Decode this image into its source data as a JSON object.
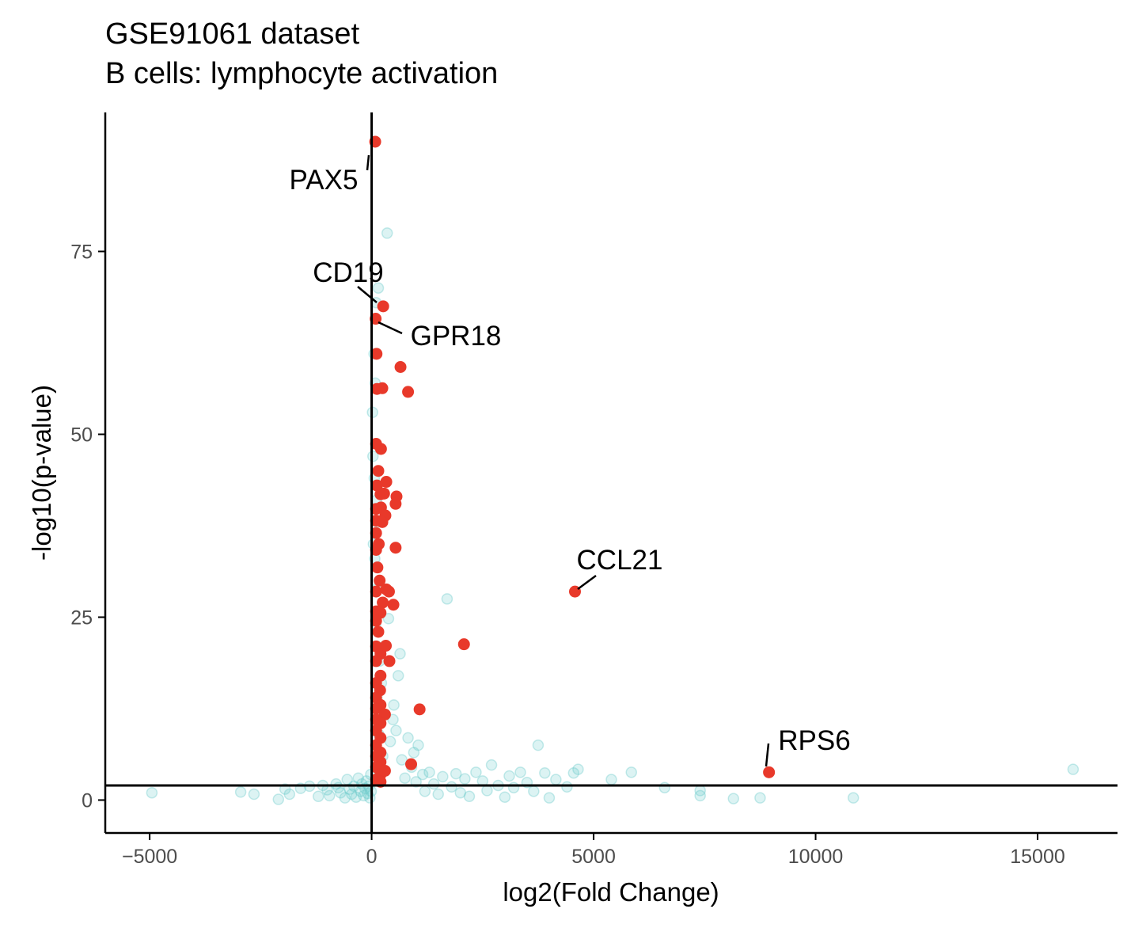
{
  "chart_data": {
    "type": "scatter",
    "title": "GSE91061 dataset",
    "subtitle": "B cells: lymphocyte activation",
    "xlabel": "log2(Fold Change)",
    "ylabel": "-log10(p-value)",
    "xlim": [
      -6000,
      16800
    ],
    "ylim": [
      -4.5,
      94
    ],
    "xticks": [
      -5000,
      0,
      5000,
      10000,
      15000
    ],
    "xtick_labels": [
      "−5000",
      "0",
      "5000",
      "10000",
      "15000"
    ],
    "yticks": [
      0,
      25,
      50,
      75
    ],
    "ytick_labels": [
      "0",
      "25",
      "50",
      "75"
    ],
    "grid": false,
    "reference_lines": {
      "x": 0,
      "y": 2
    },
    "colors": {
      "background_points": "#5fc7c7",
      "highlight_points": "#e8392a",
      "axis": "#000000"
    },
    "series": [
      {
        "points": [
          [
            -4950,
            1
          ],
          [
            -2950,
            1.1
          ],
          [
            -2650,
            0.8
          ],
          [
            -2100,
            0.1
          ],
          [
            -1950,
            1.5
          ],
          [
            -1850,
            0.8
          ],
          [
            -1600,
            1.6
          ],
          [
            -1400,
            1.9
          ],
          [
            -1200,
            0.5
          ],
          [
            -1100,
            2.0
          ],
          [
            -1000,
            1.4
          ],
          [
            -950,
            0.6
          ],
          [
            -800,
            2.2
          ],
          [
            -750,
            1.7
          ],
          [
            -700,
            1.0
          ],
          [
            -600,
            0.3
          ],
          [
            -550,
            2.8
          ],
          [
            -500,
            1.5
          ],
          [
            -450,
            0.8
          ],
          [
            -400,
            1.9
          ],
          [
            -350,
            0.4
          ],
          [
            -300,
            3.0
          ],
          [
            -250,
            1.2
          ],
          [
            -220,
            2.2
          ],
          [
            -180,
            0.6
          ],
          [
            -150,
            1.6
          ],
          [
            -120,
            2.6
          ],
          [
            -90,
            0.9
          ],
          [
            -60,
            1.9
          ],
          [
            -40,
            0.3
          ],
          [
            -20,
            3.5
          ],
          [
            -10,
            1.2
          ],
          [
            20,
            53
          ],
          [
            30,
            47
          ],
          [
            40,
            35
          ],
          [
            55,
            61
          ],
          [
            60,
            44
          ],
          [
            70,
            33
          ],
          [
            80,
            57
          ],
          [
            90,
            24
          ],
          [
            100,
            68
          ],
          [
            110,
            41
          ],
          [
            120,
            14
          ],
          [
            130,
            38
          ],
          [
            140,
            29
          ],
          [
            150,
            70
          ],
          [
            160,
            9
          ],
          [
            180,
            19
          ],
          [
            200,
            12
          ],
          [
            220,
            16
          ],
          [
            250,
            6
          ],
          [
            280,
            21
          ],
          [
            300,
            4
          ],
          [
            350,
            77.5
          ],
          [
            380,
            24.8
          ],
          [
            420,
            8
          ],
          [
            480,
            11
          ],
          [
            500,
            13
          ],
          [
            550,
            9.5
          ],
          [
            600,
            17
          ],
          [
            640,
            20
          ],
          [
            680,
            5.5
          ],
          [
            750,
            3
          ],
          [
            820,
            8.5
          ],
          [
            900,
            4.5
          ],
          [
            950,
            6.5
          ],
          [
            1000,
            2.5
          ],
          [
            1050,
            7.5
          ],
          [
            1150,
            3.5
          ],
          [
            1200,
            1.2
          ],
          [
            1300,
            3.8
          ],
          [
            1400,
            2.2
          ],
          [
            1500,
            0.8
          ],
          [
            1600,
            3.2
          ],
          [
            1700,
            27.5
          ],
          [
            1800,
            1.8
          ],
          [
            1900,
            3.6
          ],
          [
            2000,
            1
          ],
          [
            2100,
            2.9
          ],
          [
            2200,
            0.5
          ],
          [
            2350,
            3.8
          ],
          [
            2500,
            2.6
          ],
          [
            2600,
            1.3
          ],
          [
            2700,
            4.8
          ],
          [
            2850,
            2
          ],
          [
            3000,
            0.4
          ],
          [
            3100,
            3.3
          ],
          [
            3200,
            1.7
          ],
          [
            3350,
            3.8
          ],
          [
            3500,
            2.4
          ],
          [
            3650,
            1.2
          ],
          [
            3750,
            7.5
          ],
          [
            3900,
            3.7
          ],
          [
            4000,
            0.3
          ],
          [
            4150,
            2.8
          ],
          [
            4400,
            1.8
          ],
          [
            4550,
            3.7
          ],
          [
            4650,
            4.2
          ],
          [
            5400,
            2.8
          ],
          [
            5850,
            3.8
          ],
          [
            6600,
            1.7
          ],
          [
            7400,
            1.3
          ],
          [
            7400,
            0.6
          ],
          [
            8150,
            0.2
          ],
          [
            8750,
            0.3
          ],
          [
            10850,
            0.3
          ],
          [
            15800,
            4.2
          ]
        ]
      },
      {
        "points": [
          [
            80,
            90
          ],
          [
            260,
            67.5
          ],
          [
            90,
            65.8
          ],
          [
            110,
            61
          ],
          [
            650,
            59.2
          ],
          [
            120,
            56.2
          ],
          [
            240,
            56.3
          ],
          [
            820,
            55.8
          ],
          [
            100,
            48.7
          ],
          [
            210,
            48
          ],
          [
            150,
            45
          ],
          [
            120,
            43
          ],
          [
            330,
            43.5
          ],
          [
            560,
            41.5
          ],
          [
            200,
            41.8
          ],
          [
            280,
            41.9
          ],
          [
            100,
            39.8
          ],
          [
            210,
            40
          ],
          [
            310,
            38.9
          ],
          [
            540,
            40.5
          ],
          [
            100,
            38.2
          ],
          [
            240,
            38
          ],
          [
            100,
            36.5
          ],
          [
            160,
            35
          ],
          [
            100,
            34.2
          ],
          [
            540,
            34.5
          ],
          [
            130,
            31.8
          ],
          [
            180,
            30
          ],
          [
            100,
            28.5
          ],
          [
            330,
            28.8
          ],
          [
            390,
            28.5
          ],
          [
            250,
            27
          ],
          [
            490,
            26.7
          ],
          [
            100,
            25.8
          ],
          [
            200,
            25.6
          ],
          [
            100,
            24.5
          ],
          [
            150,
            23
          ],
          [
            2080,
            21.3
          ],
          [
            4580,
            28.5
          ],
          [
            100,
            21
          ],
          [
            200,
            20
          ],
          [
            320,
            21.1
          ],
          [
            100,
            19
          ],
          [
            200,
            17
          ],
          [
            400,
            19
          ],
          [
            100,
            16
          ],
          [
            190,
            15
          ],
          [
            100,
            14
          ],
          [
            200,
            13
          ],
          [
            100,
            12.5
          ],
          [
            1080,
            12.4
          ],
          [
            300,
            11.7
          ],
          [
            100,
            11
          ],
          [
            200,
            10.5
          ],
          [
            100,
            9.5
          ],
          [
            200,
            8.5
          ],
          [
            100,
            7.5
          ],
          [
            200,
            6.5
          ],
          [
            100,
            6
          ],
          [
            200,
            5.2
          ],
          [
            890,
            4.9
          ],
          [
            8950,
            3.8
          ],
          [
            100,
            4.5
          ],
          [
            200,
            3.5
          ],
          [
            300,
            4
          ],
          [
            100,
            2.8
          ],
          [
            200,
            2.5
          ]
        ]
      }
    ],
    "annotations": [
      {
        "text": "PAX5",
        "x": 80,
        "y": 90
      },
      {
        "text": "CD19",
        "x": 260,
        "y": 67.5
      },
      {
        "text": "GPR18",
        "x": 90,
        "y": 65.8
      },
      {
        "text": "CCL21",
        "x": 4580,
        "y": 28.5
      },
      {
        "text": "RPS6",
        "x": 8950,
        "y": 3.8
      }
    ]
  }
}
